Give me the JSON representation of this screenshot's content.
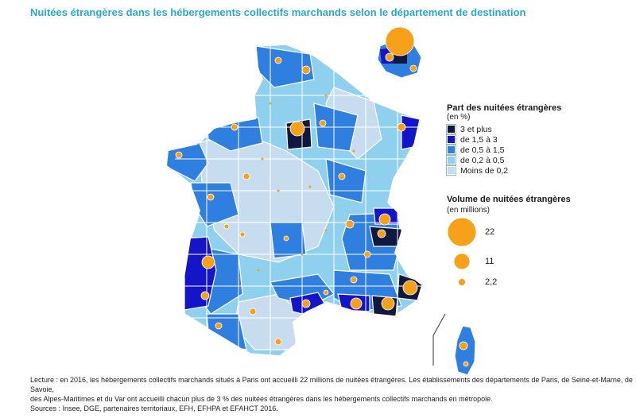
{
  "title": "Nuitées étrangères dans les hébergements collectifs marchands selon le département de destination",
  "legend_share": {
    "title": "Part des nuitées étrangères",
    "unit": "(en %)",
    "items": [
      {
        "label": "3 et plus",
        "color": "#101840"
      },
      {
        "label": "de 1,5 à 3",
        "color": "#1414c8"
      },
      {
        "label": "de 0,5 à 1,5",
        "color": "#2e7fe0"
      },
      {
        "label": "de 0,2  à 0,5",
        "color": "#8fd0ee"
      },
      {
        "label": "Moins de 0,2",
        "color": "#c8dcf0"
      }
    ]
  },
  "legend_volume": {
    "title": "Volume de nuitées étrangères",
    "unit": "(en millions)",
    "items": [
      {
        "label": "22",
        "value": 22
      },
      {
        "label": "11",
        "value": 11
      },
      {
        "label": "2,2",
        "value": 2.2
      }
    ],
    "bubble_color": "#f7a11a"
  },
  "footnote": {
    "line1": "Lecture : en 2016, les hébergements collectifs marchands situés à Paris ont accueilli 22 millions de nuitées étrangères. Les établissements des départements de Paris, de Seine-et-Marne,  de Savoie,",
    "line2": "des Alpes-Maritimes et du Var ont accueilli chacun plus de 3 % des nuitées étrangères dans les hébergements collectifs marchands en métropole.",
    "line3": "Sources : Insee, DGE, partenaires territoriaux, EFH, EFHPA et EFAHCT 2016."
  }
}
